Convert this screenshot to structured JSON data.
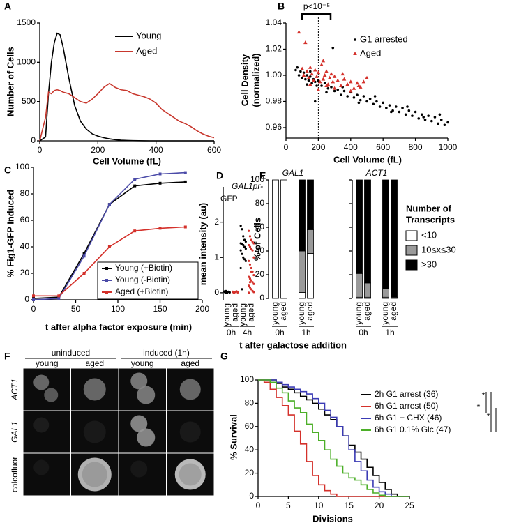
{
  "chart_data": [
    {
      "type": "line",
      "panel": "A",
      "xlabel": "Cell Volume (fL)",
      "ylabel": "Number of Cells",
      "xlim": [
        0,
        600
      ],
      "xticks": [
        0,
        200,
        400,
        600
      ],
      "ylim": [
        0,
        1500
      ],
      "yticks": [
        0,
        500,
        1000,
        1500
      ],
      "x": [
        0,
        20,
        30,
        40,
        50,
        60,
        70,
        80,
        100,
        120,
        140,
        160,
        180,
        200,
        220,
        240,
        260,
        280,
        300,
        320,
        340,
        360,
        380,
        400,
        420,
        440,
        460,
        480,
        500,
        520,
        540,
        560,
        580,
        600
      ],
      "series": [
        {
          "name": "Young",
          "color": "#000000",
          "values": [
            0,
            50,
            600,
            1000,
            1250,
            1370,
            1350,
            1200,
            800,
            450,
            250,
            150,
            90,
            60,
            40,
            25,
            15,
            8,
            5,
            3,
            2,
            1,
            0,
            0,
            0,
            0,
            0,
            0,
            0,
            0,
            0,
            0,
            0,
            0
          ]
        },
        {
          "name": "Aged",
          "color": "#c8372d",
          "values": [
            0,
            300,
            620,
            600,
            640,
            650,
            640,
            620,
            600,
            550,
            500,
            480,
            530,
            600,
            680,
            730,
            680,
            650,
            640,
            600,
            580,
            560,
            530,
            480,
            400,
            350,
            300,
            250,
            220,
            180,
            130,
            90,
            60,
            40
          ]
        }
      ]
    },
    {
      "type": "scatter",
      "panel": "B",
      "xlabel": "Cell Volume (fL)",
      "ylabel": [
        "Cell Density",
        "(normalized)"
      ],
      "annotation": "p<10⁻⁵",
      "ref_line_x": 200,
      "xlim": [
        0,
        1000
      ],
      "xticks": [
        0,
        200,
        400,
        600,
        800,
        1000
      ],
      "ylim": [
        0.952,
        1.04
      ],
      "yticks": [
        0.96,
        0.98,
        {
          "value": 1,
          "label": "1.00"
        },
        1.02,
        1.04
      ],
      "series": [
        {
          "name": "G1 arrested",
          "color": "#000000",
          "marker": "circle",
          "x": [
            60,
            70,
            80,
            90,
            100,
            110,
            120,
            130,
            140,
            150,
            160,
            170,
            180,
            190,
            200,
            220,
            240,
            260,
            280,
            300,
            320,
            340,
            360,
            380,
            400,
            420,
            440,
            460,
            480,
            500,
            520,
            540,
            560,
            580,
            600,
            620,
            640,
            660,
            680,
            700,
            720,
            740,
            760,
            780,
            800,
            820,
            840,
            860,
            880,
            900,
            920,
            940,
            960,
            980,
            1000,
            150,
            250,
            350,
            450,
            550,
            650,
            750,
            850,
            950,
            130,
            290,
            180
          ],
          "values": [
            1.004,
            1.006,
            1.0,
            1.003,
            0.998,
            1.002,
            0.997,
            1.0,
            0.996,
            0.999,
            0.994,
            0.997,
            0.995,
            0.992,
            0.996,
            0.992,
            0.994,
            0.99,
            0.991,
            0.988,
            0.989,
            0.985,
            0.988,
            0.984,
            0.987,
            0.983,
            0.985,
            0.981,
            0.984,
            0.98,
            0.982,
            0.978,
            0.98,
            0.976,
            0.979,
            0.975,
            0.977,
            0.973,
            0.976,
            0.972,
            0.975,
            0.97,
            0.973,
            0.969,
            0.972,
            0.967,
            0.97,
            0.966,
            0.969,
            0.965,
            0.968,
            0.963,
            0.966,
            0.962,
            0.964,
            1.003,
            0.987,
            0.991,
            0.979,
            0.984,
            0.972,
            0.976,
            0.968,
            0.97,
            0.993,
            1.021,
            0.98
          ]
        },
        {
          "name": "Aged",
          "color": "#d4312b",
          "marker": "triangle",
          "x": [
            80,
            100,
            110,
            120,
            130,
            140,
            150,
            160,
            170,
            180,
            190,
            200,
            210,
            220,
            230,
            240,
            250,
            260,
            270,
            280,
            290,
            300,
            320,
            340,
            360,
            380,
            400,
            420,
            440,
            460,
            480,
            500,
            150,
            200,
            250,
            300,
            350,
            400,
            450,
            230
          ],
          "values": [
            1.033,
            1.005,
            1.0,
            1.025,
            1.003,
            0.998,
            1.006,
            1.001,
            0.996,
            1.004,
            0.999,
            1.002,
            0.995,
            1.008,
            0.997,
            1.0,
            1.003,
            0.993,
            0.998,
            1.001,
            0.995,
            0.999,
            0.996,
            0.992,
            0.997,
            0.993,
            0.995,
            0.99,
            0.994,
            0.991,
            0.995,
            0.998,
            0.993,
            0.989,
            0.992,
            0.99,
            1.001,
            0.988,
            0.992,
            1.011
          ]
        }
      ]
    },
    {
      "type": "line",
      "panel": "C",
      "markers": true,
      "xlabel": "t after alpha factor exposure (min)",
      "ylabel": "% Fig1-GFP Induced",
      "xlim": [
        0,
        200
      ],
      "xticks": [
        0,
        50,
        100,
        150,
        200
      ],
      "ylim": [
        0,
        100
      ],
      "yticks": [
        0,
        20,
        40,
        60,
        80,
        100
      ],
      "x": [
        0,
        30,
        60,
        90,
        120,
        150,
        180
      ],
      "series": [
        {
          "name": "Young (+Biotin)",
          "color": "#000000",
          "values": [
            1,
            2,
            35,
            72,
            86,
            88,
            89
          ]
        },
        {
          "name": "Young (-Biotin)",
          "color": "#4b4ba8",
          "values": [
            0,
            1,
            33,
            72,
            91,
            95,
            96
          ]
        },
        {
          "name": "Aged (+Biotin)",
          "color": "#d4312b",
          "values": [
            3,
            3,
            20,
            40,
            52,
            54,
            55
          ]
        }
      ]
    },
    {
      "type": "dot",
      "panel": "D",
      "title": [
        "GAL1pr-",
        "GFP"
      ],
      "ylabel": "mean intensity (au)",
      "ylim": [
        -0.2,
        3
      ],
      "yticks": [
        0,
        1,
        2
      ],
      "categories": [
        "young",
        "aged",
        "young",
        "aged"
      ],
      "groups": [
        "0h",
        "4h"
      ],
      "colors": [
        "#000000",
        "#d4312b",
        "#000000",
        "#d4312b"
      ],
      "points": [
        [
          0.02,
          0.05,
          0.0,
          0.03,
          0.01,
          0.04,
          0.0,
          0.02
        ],
        [
          0.03,
          0.0,
          0.02,
          0.04,
          0.01,
          0.02,
          0.0
        ],
        [
          1.9,
          1.8,
          1.6,
          1.5,
          1.45,
          1.4,
          1.38,
          1.35,
          1.3,
          1.25,
          1.2,
          1.1,
          1.0,
          0.95,
          0.9,
          0.7,
          0.1
        ],
        [
          1.75,
          1.6,
          1.5,
          1.45,
          1.4,
          1.35,
          1.3,
          1.25,
          1.2,
          1.0,
          0.9,
          0.8,
          0.7,
          0.6,
          0.5,
          0.45,
          0.4,
          0.35,
          0.3,
          0.25,
          0.2,
          0.15,
          0.1,
          0.05,
          0.02,
          0.0,
          0.3,
          0.6
        ]
      ]
    },
    {
      "type": "stacked_bar",
      "panel": "E",
      "ylabel": "% of Cells",
      "xlabel": "t after galactose addition",
      "ylim": [
        0,
        100
      ],
      "yticks": [
        0,
        20,
        40,
        60,
        80,
        100
      ],
      "categories": [
        "young",
        "aged",
        "young",
        "aged"
      ],
      "groups": [
        "0h",
        "1h"
      ],
      "subplots": [
        "GAL1",
        "ACT1"
      ],
      "legend_title": [
        "Number of",
        "Transcripts"
      ],
      "series": [
        {
          "name": "<10",
          "color": "#ffffff",
          "values": [
            [
              100,
              100,
              5,
              38
            ],
            [
              1,
              1,
              1,
              0
            ]
          ]
        },
        {
          "name": "10≤x≤30",
          "color": "#9a9a9a",
          "values": [
            [
              0,
              0,
              35,
              20
            ],
            [
              20,
              12,
              7,
              1
            ]
          ]
        },
        {
          "name": ">30",
          "color": "#000000",
          "values": [
            [
              0,
              0,
              60,
              42
            ],
            [
              79,
              87,
              92,
              99
            ]
          ]
        }
      ]
    },
    {
      "type": "image",
      "panel": "F",
      "column_groups": [
        "uninduced",
        "induced (1h)"
      ],
      "columns": [
        "young",
        "aged",
        "young",
        "aged"
      ],
      "rows": [
        "ACT1",
        "GAL1",
        "calcofluor"
      ]
    },
    {
      "type": "step",
      "panel": "G",
      "xlabel": "Divisions",
      "ylabel": "% Survival",
      "annotations": [
        "*",
        "*",
        "*"
      ],
      "xlim": [
        0,
        25
      ],
      "xticks": [
        0,
        5,
        10,
        15,
        20,
        25
      ],
      "ylim": [
        0,
        100
      ],
      "yticks": [
        0,
        20,
        40,
        60,
        80,
        100
      ],
      "x": [
        0,
        1,
        2,
        3,
        4,
        5,
        6,
        7,
        8,
        9,
        10,
        11,
        12,
        13,
        14,
        15,
        16,
        17,
        18,
        19,
        20,
        21,
        22,
        23,
        24,
        25
      ],
      "series": [
        {
          "name": "2h G1 arrest (36)",
          "color": "#000000",
          "values": [
            100,
            100,
            100,
            97,
            94,
            92,
            89,
            86,
            83,
            80,
            75,
            70,
            66,
            60,
            52,
            44,
            38,
            32,
            25,
            18,
            12,
            6,
            2,
            0,
            0,
            0
          ]
        },
        {
          "name": "6h G1 arrest (50)",
          "color": "#d4312b",
          "values": [
            100,
            98,
            92,
            85,
            78,
            70,
            56,
            45,
            30,
            18,
            10,
            5,
            2,
            0,
            0,
            0,
            0,
            0,
            0,
            0,
            0,
            0,
            0,
            0,
            0,
            0
          ]
        },
        {
          "name": "6h G1 + CHX (46)",
          "color": "#3b3bb5",
          "values": [
            100,
            100,
            100,
            98,
            96,
            94,
            92,
            90,
            88,
            84,
            80,
            74,
            68,
            60,
            52,
            40,
            30,
            22,
            14,
            8,
            4,
            2,
            0,
            0,
            0,
            0
          ]
        },
        {
          "name": "6h G1 0.1% Glc (47)",
          "color": "#4caf28",
          "values": [
            100,
            100,
            98,
            93,
            89,
            82,
            76,
            72,
            62,
            55,
            48,
            40,
            32,
            26,
            20,
            16,
            14,
            10,
            6,
            3,
            1,
            0,
            0,
            0,
            0,
            0
          ]
        }
      ]
    }
  ]
}
